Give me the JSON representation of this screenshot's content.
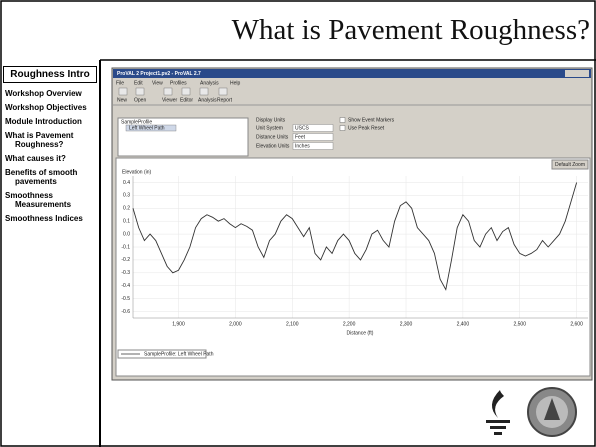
{
  "slide": {
    "title": "What is Pavement Roughness?",
    "sidebar_header": "Roughness Intro",
    "sidebar_items": [
      "Workshop Overview",
      "Workshop Objectives",
      "Module Introduction",
      "What is Pavement Roughness?",
      "What causes it?",
      "Benefits of smooth pavements",
      "Smoothness Measurements",
      "Smoothness Indices"
    ]
  },
  "app": {
    "window_title": "ProVAL 2 Project1.pv2 - ProVAL 2.7",
    "menu": [
      "File",
      "Edit",
      "View",
      "Profiles",
      "Analysis",
      "Help"
    ],
    "toolbar": [
      "New",
      "Open",
      "Viewer",
      "Editor",
      "Analysis",
      "Report"
    ],
    "tree": {
      "root": "SampleProfile",
      "child": "Left Wheel Path"
    },
    "display_units": {
      "heading": "Display Units",
      "fields": [
        {
          "label": "Unit System",
          "value": "USCS"
        },
        {
          "label": "Distance Units",
          "value": "Feet"
        },
        {
          "label": "Elevation Units",
          "value": "Inches"
        }
      ]
    },
    "checkboxes": [
      "Show Event Markers",
      "Use Peak Reset"
    ],
    "zoom_button": "Default Zoom"
  },
  "chart_data": {
    "type": "line",
    "ylabel": "Elevation (in)",
    "xlabel": "Distance (ft)",
    "xlim": [
      1820,
      2620
    ],
    "ylim": [
      -0.65,
      0.45
    ],
    "xticks": [
      {
        "value": 1900,
        "label": "1,900"
      },
      {
        "value": 2000,
        "label": "2,000"
      },
      {
        "value": 2100,
        "label": "2,100"
      },
      {
        "value": 2200,
        "label": "2,200"
      },
      {
        "value": 2300,
        "label": "2,300"
      },
      {
        "value": 2400,
        "label": "2,400"
      },
      {
        "value": 2500,
        "label": "2,500"
      },
      {
        "value": 2600,
        "label": "2,600"
      }
    ],
    "yticks": [
      0.4,
      0.3,
      0.2,
      0.1,
      {
        "value": 0,
        "label": "0.0"
      },
      -0.1,
      -0.2,
      -0.3,
      -0.4,
      -0.5,
      -0.6
    ],
    "grid": true,
    "x": [
      1820,
      1830,
      1840,
      1850,
      1860,
      1870,
      1880,
      1890,
      1900,
      1910,
      1920,
      1930,
      1940,
      1950,
      1960,
      1970,
      1980,
      1990,
      2000,
      2010,
      2020,
      2030,
      2040,
      2050,
      2060,
      2070,
      2080,
      2090,
      2100,
      2110,
      2120,
      2130,
      2140,
      2150,
      2160,
      2170,
      2180,
      2190,
      2200,
      2210,
      2220,
      2230,
      2240,
      2250,
      2260,
      2270,
      2280,
      2290,
      2300,
      2310,
      2320,
      2330,
      2340,
      2350,
      2360,
      2370,
      2380,
      2390,
      2400,
      2410,
      2420,
      2430,
      2440,
      2450,
      2460,
      2470,
      2480,
      2490,
      2500,
      2510,
      2520,
      2530,
      2540,
      2550,
      2560,
      2570,
      2580,
      2590,
      2600
    ],
    "series": [
      {
        "name": "SampleProfile: Left Wheel Path",
        "color": "#333333",
        "values": [
          0.2,
          0.05,
          -0.05,
          0.0,
          -0.05,
          -0.15,
          -0.25,
          -0.3,
          -0.28,
          -0.2,
          -0.1,
          0.05,
          0.12,
          0.15,
          0.13,
          0.1,
          0.12,
          0.08,
          0.05,
          0.08,
          0.06,
          0.03,
          -0.1,
          -0.18,
          -0.05,
          0.0,
          0.1,
          0.15,
          0.12,
          0.05,
          -0.02,
          0.05,
          -0.15,
          -0.2,
          -0.1,
          -0.15,
          -0.05,
          0.0,
          -0.05,
          -0.15,
          -0.2,
          -0.12,
          0.0,
          0.03,
          -0.05,
          -0.1,
          0.1,
          0.22,
          0.25,
          0.2,
          0.05,
          0.0,
          -0.05,
          -0.15,
          -0.35,
          -0.43,
          -0.2,
          0.05,
          0.15,
          0.1,
          -0.05,
          -0.1,
          0.0,
          0.05,
          -0.05,
          0.02,
          0.05,
          -0.08,
          -0.15,
          -0.17,
          -0.15,
          -0.12,
          -0.05,
          -0.1,
          -0.05,
          0.0,
          0.1,
          0.25,
          0.4
        ]
      }
    ]
  }
}
